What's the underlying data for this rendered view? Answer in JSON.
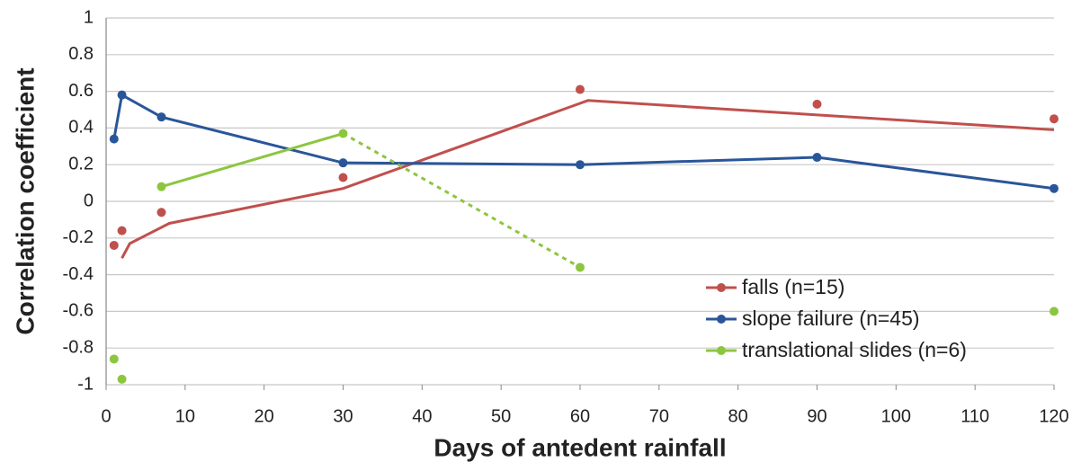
{
  "chart_data": {
    "type": "line",
    "x_label": "Days of antedent rainfall",
    "y_label": "Correlation coefficient",
    "xlim": [
      0,
      120
    ],
    "xticks": [
      0,
      10,
      20,
      30,
      40,
      50,
      60,
      70,
      80,
      90,
      100,
      110,
      120
    ],
    "ylim": [
      -1,
      1
    ],
    "yticks": [
      -1,
      -0.8,
      -0.6,
      -0.4,
      -0.2,
      0,
      0.2,
      0.4,
      0.6,
      0.8,
      1
    ],
    "grid": true,
    "legend": "lower right",
    "series": [
      {
        "name": "falls (n=15)",
        "color": "#c0504d",
        "x": [
          1,
          2,
          7,
          30,
          60,
          90,
          120
        ],
        "values": [
          -0.24,
          -0.16,
          -0.06,
          0.13,
          0.61,
          0.53,
          0.45
        ],
        "trend": {
          "x": [
            2,
            3,
            8,
            30,
            61,
            120
          ],
          "values": [
            -0.31,
            -0.23,
            -0.12,
            0.07,
            0.55,
            0.39
          ]
        }
      },
      {
        "name": "slope failure (n=45)",
        "color": "#2a5699",
        "x": [
          1,
          2,
          7,
          30,
          60,
          90,
          120
        ],
        "values": [
          0.34,
          0.58,
          0.46,
          0.21,
          0.2,
          0.24,
          0.07
        ],
        "connected": true
      },
      {
        "name": "translational slides (n=6)",
        "color": "#8cc63f",
        "x": [
          1,
          2,
          7,
          30,
          60,
          120
        ],
        "values": [
          -0.86,
          -0.97,
          0.08,
          0.37,
          -0.36,
          -0.6
        ],
        "solid_line": [
          2,
          3
        ],
        "dashed_line": [
          3,
          4
        ]
      }
    ]
  }
}
